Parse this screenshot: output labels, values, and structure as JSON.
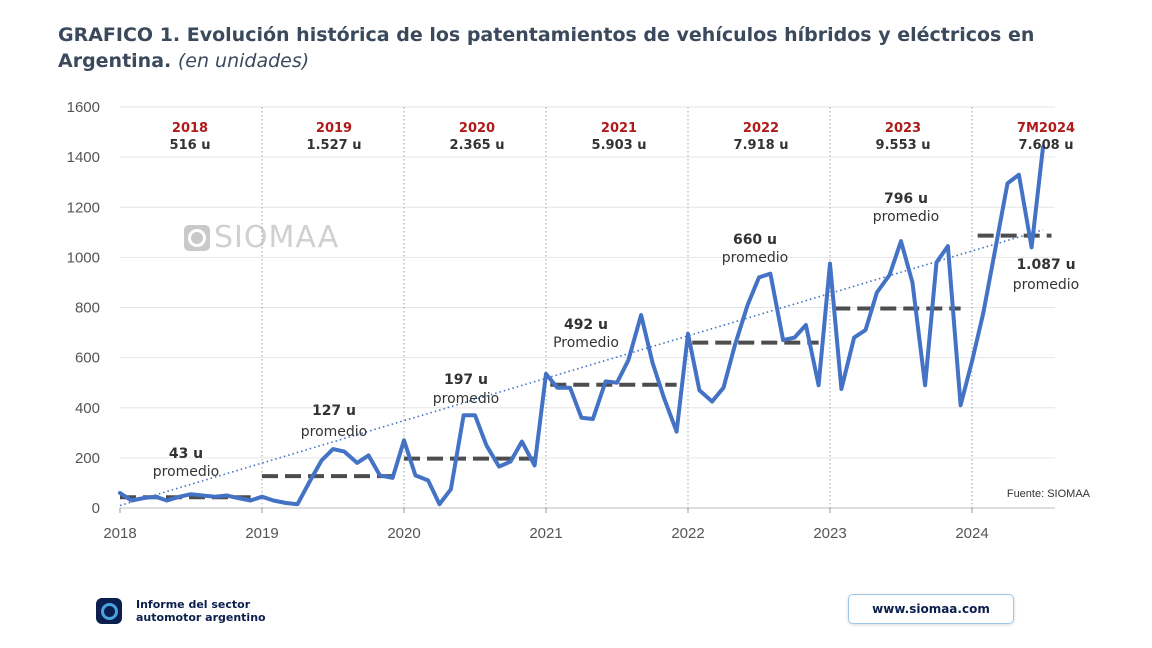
{
  "header": {
    "title": "GRAFICO 1. Evolución histórica de los patentamientos de vehículos híbridos y eléctricos en Argentina.",
    "subtitle": "(en unidades)"
  },
  "watermark": {
    "text": "SIOMAA"
  },
  "source": "Fuente: SIOMAA",
  "footer": {
    "report_line1": "Informe del sector",
    "report_line2": "automotor argentino",
    "website": "www.siomaa.com"
  },
  "colors": {
    "line": "#4472c4",
    "average": "#4d4d4d",
    "year_label": "#b01a1a",
    "trend": "#4472c4"
  },
  "chart_data": {
    "type": "line",
    "title": "GRAFICO 1. Evolución histórica de los patentamientos de vehículos híbridos y eléctricos en Argentina.",
    "ylim": [
      0,
      1600
    ],
    "xlim": [
      2018,
      2024.63
    ],
    "y_ticks": [
      "0",
      "200",
      "400",
      "600",
      "800",
      "1000",
      "1200",
      "1400",
      "1600"
    ],
    "x_ticks": [
      "2018",
      "2019",
      "2020",
      "2021",
      "2022",
      "2023",
      "2024"
    ],
    "grid": "horizontal",
    "series": [
      {
        "x": [
          2018.0,
          2018.08,
          2018.17,
          2018.25,
          2018.33,
          2018.42,
          2018.5,
          2018.58,
          2018.67,
          2018.75,
          2018.83,
          2018.92,
          2019.0,
          2019.08,
          2019.17,
          2019.25,
          2019.33,
          2019.42,
          2019.5,
          2019.58,
          2019.67,
          2019.75,
          2019.83,
          2019.92,
          2020.0,
          2020.08,
          2020.17,
          2020.25,
          2020.33,
          2020.42,
          2020.5,
          2020.58,
          2020.67,
          2020.75,
          2020.83,
          2020.92,
          2021.0,
          2021.08,
          2021.17,
          2021.25,
          2021.33,
          2021.42,
          2021.5,
          2021.58,
          2021.67,
          2021.75,
          2021.83,
          2021.92,
          2022.0,
          2022.08,
          2022.17,
          2022.25,
          2022.33,
          2022.42,
          2022.5,
          2022.58,
          2022.67,
          2022.75,
          2022.83,
          2022.92,
          2023.0,
          2023.08,
          2023.17,
          2023.25,
          2023.33,
          2023.42,
          2023.5,
          2023.58,
          2023.67,
          2023.75,
          2023.83,
          2023.92,
          2024.0,
          2024.08,
          2024.17,
          2024.25,
          2024.33,
          2024.42,
          2024.5
        ],
        "values": [
          60,
          30,
          40,
          45,
          30,
          45,
          55,
          50,
          45,
          50,
          40,
          30,
          45,
          30,
          20,
          15,
          100,
          190,
          235,
          225,
          180,
          210,
          130,
          120,
          270,
          130,
          110,
          15,
          75,
          370,
          370,
          250,
          165,
          185,
          265,
          170,
          535,
          480,
          480,
          360,
          355,
          505,
          500,
          590,
          770,
          580,
          440,
          305,
          695,
          470,
          425,
          480,
          650,
          810,
          920,
          935,
          670,
          680,
          730,
          490,
          975,
          475,
          680,
          710,
          860,
          930,
          1065,
          900,
          490,
          980,
          1045,
          410,
          585,
          780,
          1050,
          1295,
          1330,
          1040,
          1440
        ]
      }
    ],
    "averages": [
      {
        "year": "2018",
        "value": 43
      },
      {
        "year": "2019",
        "value": 127
      },
      {
        "year": "2020",
        "value": 197
      },
      {
        "year": "2021",
        "value": 492
      },
      {
        "year": "2022",
        "value": 660
      },
      {
        "year": "2023",
        "value": 796
      },
      {
        "year": "7M2024",
        "value": 1087
      }
    ],
    "trendline": {
      "from": [
        2018.0,
        10
      ],
      "to": [
        2024.5,
        1110
      ]
    },
    "year_totals": [
      {
        "label": "2018",
        "units": "516 u"
      },
      {
        "label": "2019",
        "units": "1.527 u"
      },
      {
        "label": "2020",
        "units": "2.365 u"
      },
      {
        "label": "2021",
        "units": "5.903 u"
      },
      {
        "label": "2022",
        "units": "7.918 u"
      },
      {
        "label": "2023",
        "units": "9.553 u"
      },
      {
        "label": "7M2024",
        "units": "7.608 u"
      }
    ],
    "average_labels": [
      {
        "value": "43 u",
        "text": "promedio"
      },
      {
        "value": "127 u",
        "text": "promedio"
      },
      {
        "value": "197 u",
        "text": "promedio"
      },
      {
        "value": "492 u",
        "text": "Promedio"
      },
      {
        "value": "660 u",
        "text": "promedio"
      },
      {
        "value": "796 u",
        "text": "promedio"
      },
      {
        "value": "1.087 u",
        "text": "promedio"
      }
    ]
  }
}
